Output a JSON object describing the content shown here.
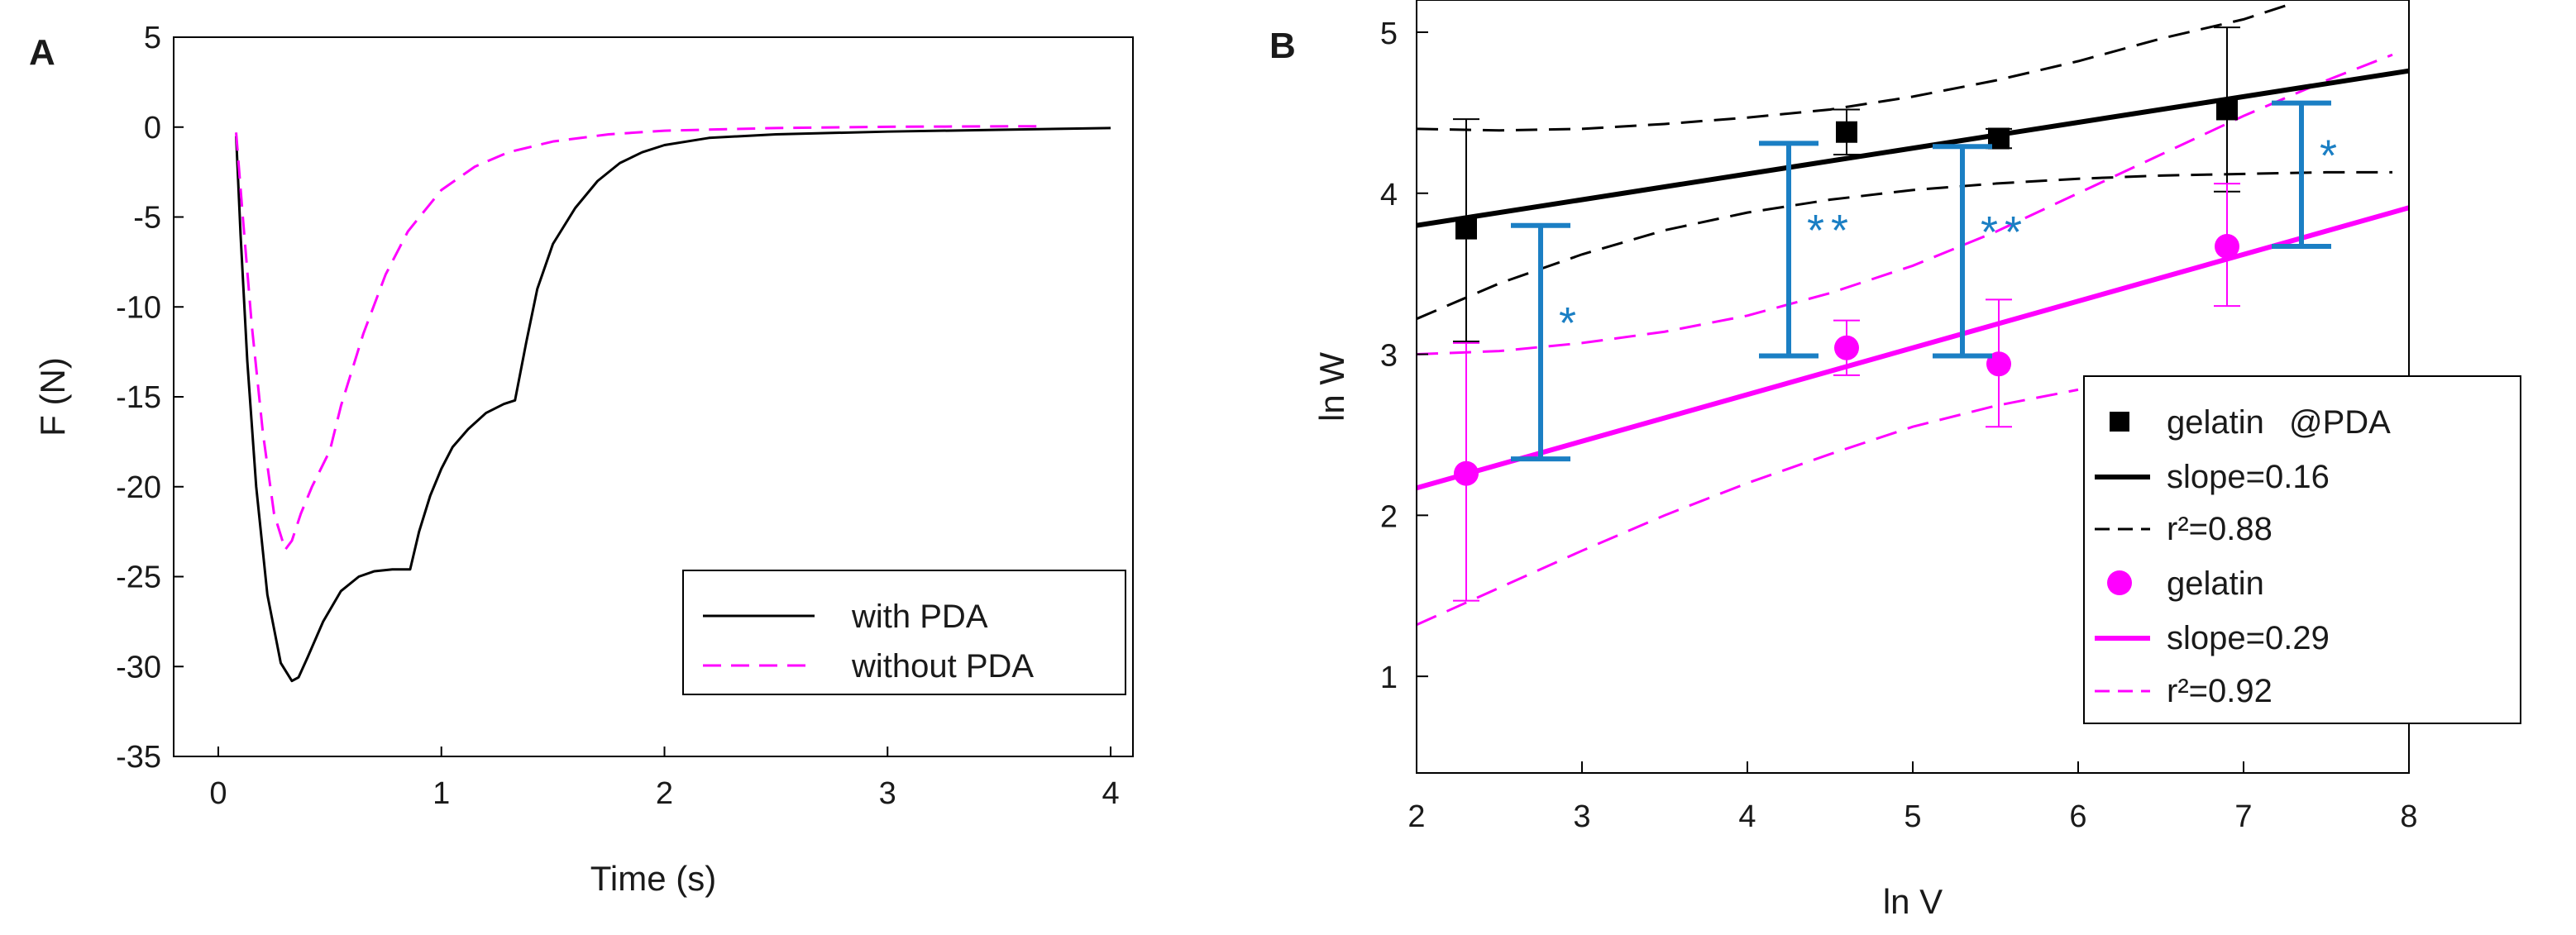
{
  "chart_data": [
    {
      "type": "line",
      "panel_label": "A",
      "xlabel": "Time (s)",
      "ylabel": "F (N)",
      "xlim": [
        -0.2,
        4.1
      ],
      "ylim": [
        -35,
        5
      ],
      "xticks": [
        0,
        1,
        2,
        3,
        4
      ],
      "yticks": [
        5,
        0,
        -5,
        -10,
        -15,
        -20,
        -25,
        -30,
        -35
      ],
      "legend_position": "bottom-right",
      "series": [
        {
          "name": "with PDA",
          "color": "#000000",
          "dash": "solid",
          "x": [
            0.08,
            0.1,
            0.13,
            0.17,
            0.22,
            0.28,
            0.33,
            0.36,
            0.4,
            0.47,
            0.55,
            0.63,
            0.7,
            0.78,
            0.86,
            0.9,
            0.95,
            1.0,
            1.05,
            1.12,
            1.2,
            1.28,
            1.33,
            1.38,
            1.43,
            1.5,
            1.6,
            1.7,
            1.8,
            1.9,
            2.0,
            2.2,
            2.5,
            3.0,
            3.5,
            4.0
          ],
          "y": [
            -0.5,
            -6,
            -13,
            -20,
            -26,
            -29.8,
            -30.8,
            -30.6,
            -29.5,
            -27.5,
            -25.8,
            -25,
            -24.7,
            -24.6,
            -24.6,
            -22.5,
            -20.5,
            -19,
            -17.8,
            -16.8,
            -15.9,
            -15.4,
            -15.2,
            -12,
            -9,
            -6.5,
            -4.5,
            -3,
            -2,
            -1.4,
            -1.0,
            -0.6,
            -0.4,
            -0.25,
            -0.15,
            -0.05
          ]
        },
        {
          "name": "without PDA",
          "color": "#ff00ff",
          "dash": "dashed",
          "x": [
            0.08,
            0.11,
            0.15,
            0.2,
            0.25,
            0.3,
            0.33,
            0.37,
            0.42,
            0.5,
            0.55,
            0.65,
            0.75,
            0.85,
            1.0,
            1.15,
            1.3,
            1.5,
            1.75,
            2.0,
            2.5,
            3.0,
            3.7
          ],
          "y": [
            -0.3,
            -5,
            -11,
            -17,
            -21.5,
            -23.5,
            -23,
            -21.5,
            -20,
            -18,
            -15.5,
            -11.5,
            -8.2,
            -5.8,
            -3.5,
            -2.2,
            -1.4,
            -0.8,
            -0.4,
            -0.2,
            -0.05,
            0.02,
            0.05
          ]
        }
      ]
    },
    {
      "type": "scatter",
      "panel_label": "B",
      "xlabel": "ln V",
      "ylabel": "ln W",
      "xlim": [
        2,
        8
      ],
      "ylim": [
        0.4,
        5.2
      ],
      "xticks": [
        2,
        3,
        4,
        5,
        6,
        7,
        8
      ],
      "yticks": [
        1,
        2,
        3,
        4,
        5
      ],
      "legend_position": "bottom-right",
      "series": [
        {
          "name": "gelatin@PDA",
          "legend_label_left": "gelatin",
          "legend_label_right": "@PDA",
          "color": "#000000",
          "marker": "square",
          "x": [
            2.3,
            4.6,
            5.52,
            6.9
          ],
          "y": [
            3.78,
            4.38,
            4.34,
            4.52
          ],
          "y_upper": [
            4.46,
            4.52,
            4.4,
            5.03
          ],
          "y_lower": [
            3.08,
            4.24,
            4.28,
            4.01
          ],
          "fit": {
            "label": "slope=0.16",
            "slope": 0.16,
            "intercept": 3.48,
            "color": "#000000"
          },
          "confidence_band": {
            "label": "r²=0.88",
            "upper": [
              [
                2,
                4.4
              ],
              [
                2.5,
                4.39
              ],
              [
                3,
                4.4
              ],
              [
                3.5,
                4.43
              ],
              [
                4,
                4.47
              ],
              [
                4.5,
                4.52
              ],
              [
                5,
                4.6
              ],
              [
                5.5,
                4.7
              ],
              [
                6,
                4.82
              ],
              [
                6.5,
                4.96
              ],
              [
                7,
                5.08
              ],
              [
                7.3,
                5.18
              ]
            ],
            "lower": [
              [
                2,
                3.22
              ],
              [
                2.5,
                3.44
              ],
              [
                3,
                3.62
              ],
              [
                3.5,
                3.77
              ],
              [
                4,
                3.88
              ],
              [
                4.5,
                3.96
              ],
              [
                5,
                4.02
              ],
              [
                5.5,
                4.06
              ],
              [
                6,
                4.09
              ],
              [
                6.5,
                4.11
              ],
              [
                7,
                4.12
              ],
              [
                7.5,
                4.13
              ],
              [
                7.9,
                4.13
              ]
            ]
          }
        },
        {
          "name": "gelatin",
          "color": "#ff00ff",
          "marker": "circle",
          "x": [
            2.3,
            4.6,
            5.52,
            6.9
          ],
          "y": [
            2.26,
            3.04,
            2.94,
            3.67
          ],
          "y_upper": [
            3.07,
            3.21,
            3.34,
            4.06
          ],
          "y_lower": [
            1.47,
            2.87,
            2.55,
            3.3
          ],
          "fit": {
            "label": "slope=0.29",
            "slope": 0.29,
            "intercept": 1.59,
            "color": "#ff00ff"
          },
          "confidence_band": {
            "label": "r²=0.92",
            "upper": [
              [
                2,
                3.0
              ],
              [
                2.5,
                3.02
              ],
              [
                3,
                3.07
              ],
              [
                3.5,
                3.14
              ],
              [
                4,
                3.24
              ],
              [
                4.5,
                3.38
              ],
              [
                5,
                3.55
              ],
              [
                5.5,
                3.76
              ],
              [
                6,
                4.0
              ],
              [
                6.5,
                4.24
              ],
              [
                7,
                4.48
              ],
              [
                7.5,
                4.7
              ],
              [
                7.9,
                4.86
              ]
            ],
            "lower": [
              [
                2,
                1.32
              ],
              [
                2.5,
                1.55
              ],
              [
                3,
                1.78
              ],
              [
                3.5,
                2.0
              ],
              [
                4,
                2.2
              ],
              [
                4.5,
                2.38
              ],
              [
                5,
                2.55
              ],
              [
                5.5,
                2.68
              ],
              [
                6,
                2.78
              ]
            ]
          }
        }
      ],
      "significance_bars": [
        {
          "x": 2.75,
          "low": 2.35,
          "high": 3.8,
          "label": "*"
        },
        {
          "x": 4.25,
          "low": 2.99,
          "high": 4.31,
          "label": "**"
        },
        {
          "x": 5.3,
          "low": 2.99,
          "high": 4.29,
          "label": "**"
        },
        {
          "x": 7.35,
          "low": 3.67,
          "high": 4.56,
          "label": "*"
        }
      ],
      "significance_color": "#1b7fc4"
    }
  ]
}
